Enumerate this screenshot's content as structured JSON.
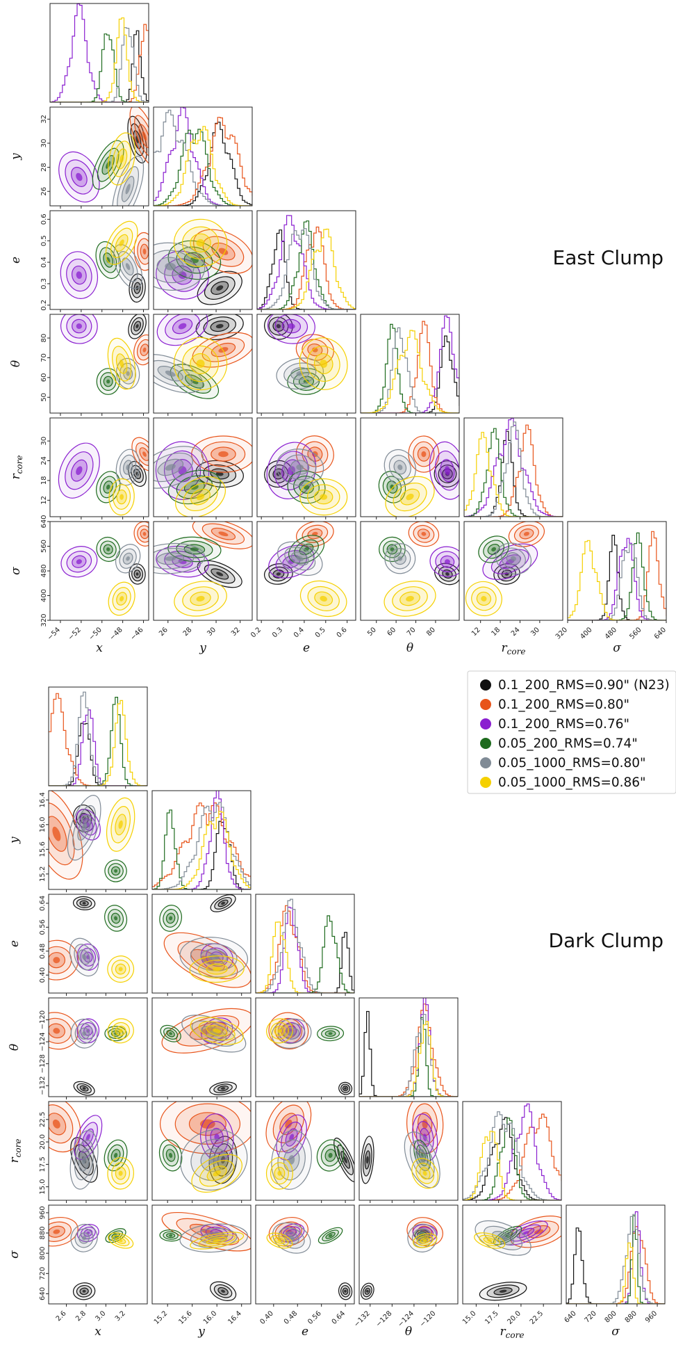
{
  "colors": {
    "N23": "#111111",
    "RMS080": "#e8541a",
    "RMS076": "#8a1fd0",
    "RMS074": "#1e6b1e",
    "RMS080b": "#808b96",
    "RMS086": "#f5d000"
  },
  "legend": {
    "placement": "right",
    "entries": [
      {
        "key": "N23",
        "label": "0.1_200_RMS=0.90\" (N23)"
      },
      {
        "key": "RMS080",
        "label": "0.1_200_RMS=0.80\""
      },
      {
        "key": "RMS076",
        "label": "0.1_200_RMS=0.76\""
      },
      {
        "key": "RMS074",
        "label": "0.05_200_RMS=0.74\""
      },
      {
        "key": "RMS080b",
        "label": "0.05_1000_RMS=0.80\""
      },
      {
        "key": "RMS086",
        "label": "0.05_1000_RMS=0.86\""
      }
    ]
  },
  "chart_data": [
    {
      "type": "corner",
      "title": "East Clump",
      "parameters": [
        "x",
        "y",
        "e",
        "θ",
        "r_core",
        "σ"
      ],
      "axis_labels": [
        {
          "main": "x",
          "sub": ""
        },
        {
          "main": "y",
          "sub": ""
        },
        {
          "main": "e",
          "sub": ""
        },
        {
          "main": "θ",
          "sub": ""
        },
        {
          "main": "r",
          "sub": "core"
        },
        {
          "main": "σ",
          "sub": ""
        }
      ],
      "ranges": [
        [
          -55,
          -45.5
        ],
        [
          24.8,
          33
        ],
        [
          0.18,
          0.64
        ],
        [
          42,
          92
        ],
        [
          7,
          37
        ],
        [
          320,
          640
        ]
      ],
      "ticks": [
        [
          "−54",
          "−52",
          "−50",
          "−48",
          "−46"
        ],
        [
          "26",
          "28",
          "30",
          "32"
        ],
        [
          "0.2",
          "0.3",
          "0.4",
          "0.5",
          "0.6"
        ],
        [
          "50",
          "60",
          "70",
          "80"
        ],
        [
          "12",
          "18",
          "24",
          "30"
        ],
        [
          "320",
          "400",
          "480",
          "560",
          "640"
        ]
      ],
      "tick_values": [
        [
          -54,
          -52,
          -50,
          -48,
          -46
        ],
        [
          26,
          28,
          30,
          32
        ],
        [
          0.2,
          0.3,
          0.4,
          0.5,
          0.6
        ],
        [
          50,
          60,
          70,
          80
        ],
        [
          12,
          18,
          24,
          30
        ],
        [
          320,
          400,
          480,
          560,
          640
        ]
      ],
      "series": [
        {
          "key": "N23",
          "mean": [
            -46.6,
            30.3,
            0.28,
            86,
            20,
            470
          ],
          "sd": [
            0.35,
            0.9,
            0.03,
            3,
            1.8,
            15
          ]
        },
        {
          "key": "RMS080",
          "mean": [
            -45.9,
            30.6,
            0.45,
            74,
            26,
            600
          ],
          "sd": [
            0.45,
            1.2,
            0.04,
            3.5,
            2.5,
            18
          ]
        },
        {
          "key": "RMS076",
          "mean": [
            -52.2,
            27.2,
            0.34,
            86,
            21,
            510
          ],
          "sd": [
            0.8,
            1.0,
            0.05,
            4,
            4,
            22
          ]
        },
        {
          "key": "RMS074",
          "mean": [
            -49.4,
            28.2,
            0.41,
            58,
            16,
            550
          ],
          "sd": [
            0.5,
            1.0,
            0.04,
            3,
            2.2,
            18
          ]
        },
        {
          "key": "RMS080b",
          "mean": [
            -47.5,
            26.2,
            0.38,
            62,
            22,
            520
          ],
          "sd": [
            0.5,
            1.3,
            0.05,
            3.5,
            2.5,
            22
          ]
        },
        {
          "key": "RMS086",
          "mean": [
            -48.1,
            28.7,
            0.49,
            67,
            13,
            390
          ],
          "sd": [
            0.55,
            1.0,
            0.05,
            6,
            2.5,
            25
          ]
        }
      ]
    },
    {
      "type": "corner",
      "title": "Dark Clump",
      "parameters": [
        "x",
        "y",
        "e",
        "θ",
        "r_core",
        "σ"
      ],
      "axis_labels": [
        {
          "main": "x",
          "sub": ""
        },
        {
          "main": "y",
          "sub": ""
        },
        {
          "main": "e",
          "sub": ""
        },
        {
          "main": "θ",
          "sub": ""
        },
        {
          "main": "r",
          "sub": "core"
        },
        {
          "main": "σ",
          "sub": ""
        }
      ],
      "ranges": [
        [
          2.42,
          3.42
        ],
        [
          14.95,
          16.55
        ],
        [
          0.34,
          0.67
        ],
        [
          -134,
          -116
        ],
        [
          13.5,
          24.5
        ],
        [
          600,
          990
        ]
      ],
      "ticks": [
        [
          "2.6",
          "2.8",
          "3.0",
          "3.2"
        ],
        [
          "15.2",
          "15.6",
          "16.0",
          "16.4"
        ],
        [
          "0.40",
          "0.48",
          "0.56",
          "0.64"
        ],
        [
          "−132",
          "−128",
          "−124",
          "−120"
        ],
        [
          "15.0",
          "17.5",
          "20.0",
          "22.5"
        ],
        [
          "640",
          "720",
          "800",
          "880",
          "960"
        ]
      ],
      "tick_values": [
        [
          2.6,
          2.8,
          3.0,
          3.2
        ],
        [
          15.2,
          15.6,
          16.0,
          16.4
        ],
        [
          0.4,
          0.48,
          0.56,
          0.64
        ],
        [
          -132,
          -128,
          -124,
          -120
        ],
        [
          15,
          17.5,
          20,
          22.5
        ],
        [
          640,
          720,
          800,
          880,
          960
        ]
      ],
      "series": [
        {
          "key": "N23",
          "mean": [
            2.78,
            16.1,
            0.64,
            -132.5,
            18,
            650
          ],
          "sd": [
            0.05,
            0.1,
            0.01,
            0.5,
            1.2,
            15
          ]
        },
        {
          "key": "RMS080",
          "mean": [
            2.5,
            15.85,
            0.45,
            -122,
            22,
            885
          ],
          "sd": [
            0.1,
            0.35,
            0.03,
            1.5,
            1.5,
            25
          ]
        },
        {
          "key": "RMS076",
          "mean": [
            2.82,
            16.0,
            0.46,
            -122,
            20.5,
            880
          ],
          "sd": [
            0.05,
            0.12,
            0.02,
            1.0,
            1.2,
            15
          ]
        },
        {
          "key": "RMS074",
          "mean": [
            3.1,
            15.25,
            0.59,
            -122.5,
            18.5,
            870
          ],
          "sd": [
            0.05,
            0.08,
            0.02,
            0.6,
            0.8,
            10
          ]
        },
        {
          "key": "RMS080b",
          "mean": [
            2.78,
            15.95,
            0.46,
            -122.5,
            18,
            860
          ],
          "sd": [
            0.06,
            0.25,
            0.03,
            1.2,
            1.5,
            25
          ]
        },
        {
          "key": "RMS086",
          "mean": [
            3.15,
            16.0,
            0.42,
            -122,
            16.5,
            850
          ],
          "sd": [
            0.06,
            0.2,
            0.02,
            1.0,
            0.8,
            12
          ]
        }
      ]
    }
  ]
}
